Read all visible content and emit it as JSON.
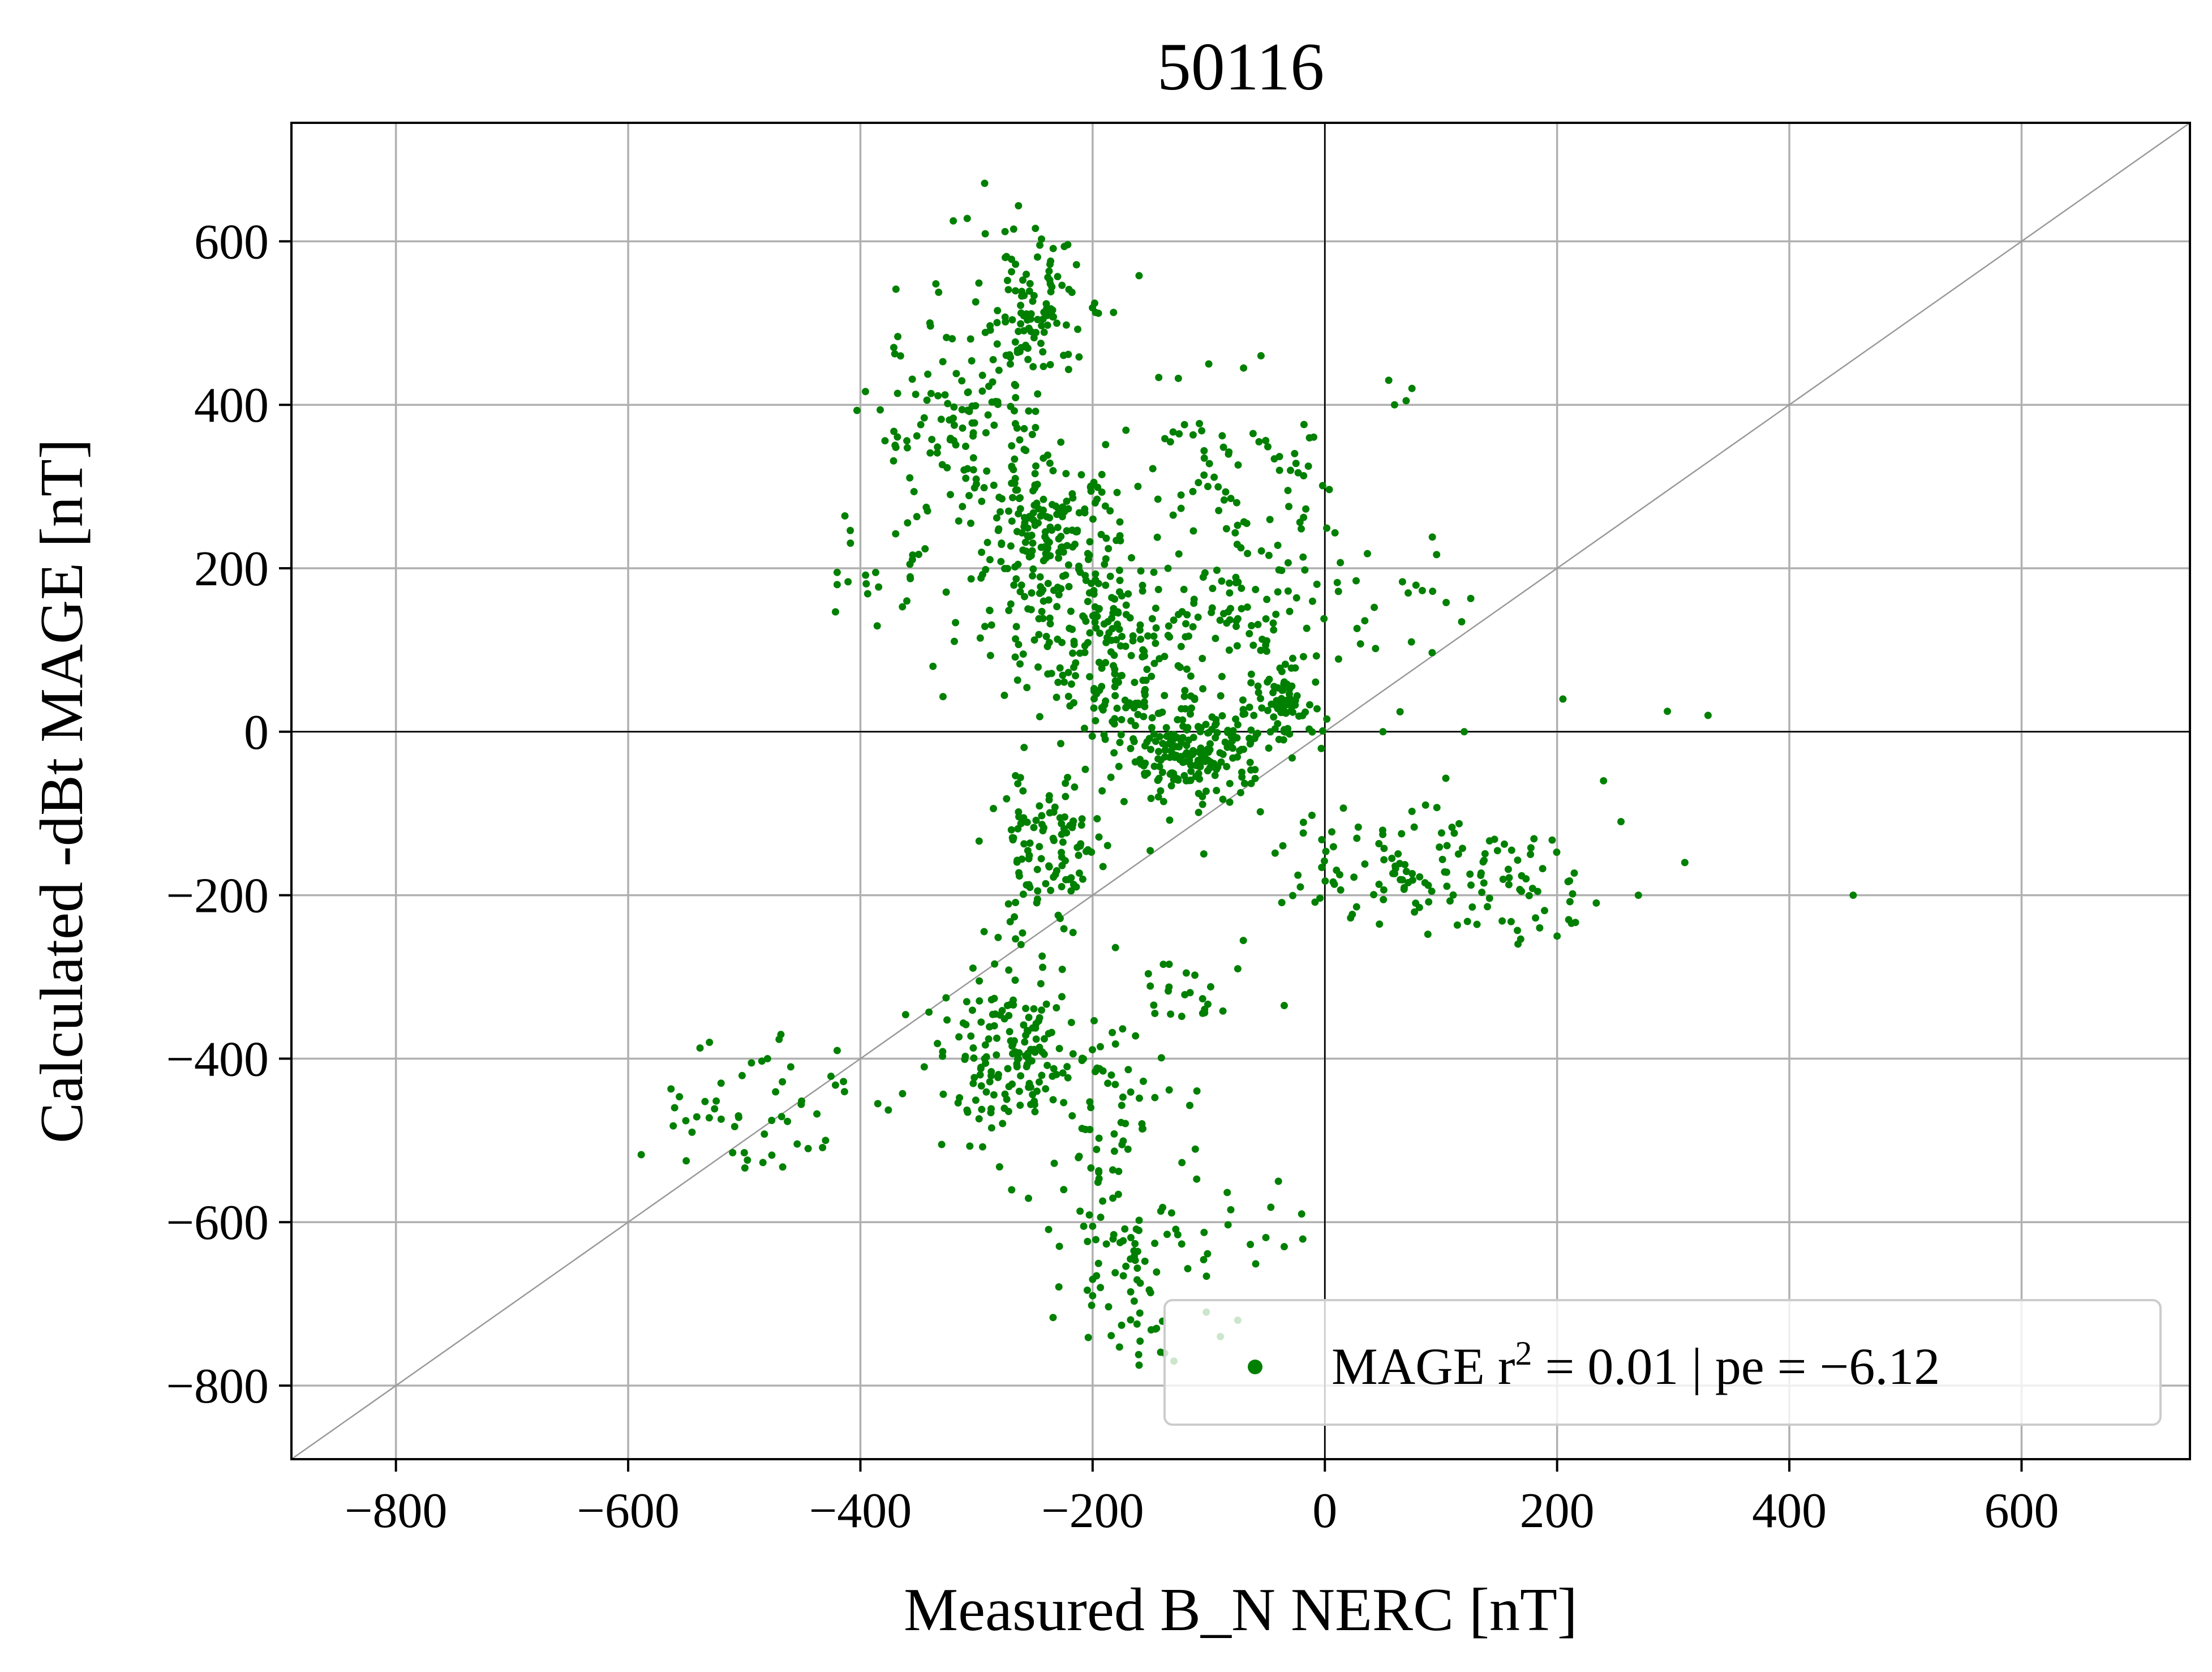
{
  "chart_data": {
    "type": "scatter",
    "title": "50116",
    "xlabel": "Measured B_N NERC [nT]",
    "ylabel": "Calculated -dBt MAGE [nT]",
    "xlim": [
      -890,
      745
    ],
    "ylim": [
      -890,
      745
    ],
    "xticks": [
      -800,
      -600,
      -400,
      -200,
      0,
      200,
      400,
      600
    ],
    "yticks": [
      -800,
      -600,
      -400,
      -200,
      0,
      200,
      400,
      600
    ],
    "xtick_labels": [
      "−800",
      "−600",
      "−400",
      "−200",
      "0",
      "200",
      "400",
      "600"
    ],
    "ytick_labels": [
      "−800",
      "−600",
      "−400",
      "−200",
      "0",
      "200",
      "400",
      "600"
    ],
    "grid": true,
    "reference_line": "y = x",
    "zero_lines": true,
    "legend_position": "lower-right",
    "colors": {
      "points": "#008000",
      "grid": "#b0b0b0",
      "diagonal": "#999999",
      "axes": "#000000"
    },
    "series": [
      {
        "name": "MAGE r² = 0.01 | pe = −6.12",
        "legend_label": {
          "prefix": "MAGE r",
          "sup": "2",
          "suffix": " = 0.01 | pe = −6.12"
        },
        "clusters": [
          {
            "cx": -255,
            "cy": 510,
            "sx": 22,
            "sy": 45,
            "n": 110
          },
          {
            "cx": -310,
            "cy": 370,
            "sx": 40,
            "sy": 60,
            "n": 120
          },
          {
            "cx": -240,
            "cy": 245,
            "sx": 30,
            "sy": 40,
            "n": 160
          },
          {
            "cx": -210,
            "cy": 140,
            "sx": 50,
            "sy": 55,
            "n": 140
          },
          {
            "cx": -170,
            "cy": 60,
            "sx": 35,
            "sy": 50,
            "n": 100
          },
          {
            "cx": -110,
            "cy": -30,
            "sx": 30,
            "sy": 28,
            "n": 200
          },
          {
            "cx": -80,
            "cy": 130,
            "sx": 40,
            "sy": 50,
            "n": 90
          },
          {
            "cx": -240,
            "cy": -150,
            "sx": 25,
            "sy": 55,
            "n": 120
          },
          {
            "cx": -30,
            "cy": 30,
            "sx": 15,
            "sy": 20,
            "n": 60
          },
          {
            "cx": 80,
            "cy": -160,
            "sx": 60,
            "sy": 40,
            "n": 110
          },
          {
            "cx": 160,
            "cy": -200,
            "sx": 40,
            "sy": 30,
            "n": 30
          },
          {
            "cx": -270,
            "cy": -400,
            "sx": 30,
            "sy": 45,
            "n": 150
          },
          {
            "cx": -200,
            "cy": -450,
            "sx": 40,
            "sy": 60,
            "n": 70
          },
          {
            "cx": -170,
            "cy": -640,
            "sx": 25,
            "sy": 60,
            "n": 70
          },
          {
            "cx": -500,
            "cy": -450,
            "sx": 50,
            "sy": 50,
            "n": 40
          },
          {
            "cx": -380,
            "cy": 200,
            "sx": 30,
            "sy": 40,
            "n": 20
          },
          {
            "cx": -120,
            "cy": 320,
            "sx": 35,
            "sy": 50,
            "n": 40
          },
          {
            "cx": -30,
            "cy": 300,
            "sx": 30,
            "sy": 50,
            "n": 30
          },
          {
            "cx": 40,
            "cy": 150,
            "sx": 40,
            "sy": 50,
            "n": 30
          },
          {
            "cx": -100,
            "cy": -330,
            "sx": 30,
            "sy": 40,
            "n": 20
          },
          {
            "cx": -70,
            "cy": -600,
            "sx": 40,
            "sy": 50,
            "n": 15
          }
        ],
        "points": [
          [
            -293,
            671
          ],
          [
            -320,
            625
          ],
          [
            -308,
            628
          ],
          [
            -268,
            615
          ],
          [
            -195,
            512
          ],
          [
            -182,
            513
          ],
          [
            -160,
            558
          ],
          [
            -335,
            548
          ],
          [
            -420,
            180
          ],
          [
            -420,
            195
          ],
          [
            -395,
            181
          ],
          [
            -360,
            160
          ],
          [
            55,
            430
          ],
          [
            70,
            405
          ],
          [
            60,
            400
          ],
          [
            75,
            420
          ],
          [
            205,
            40
          ],
          [
            295,
            25
          ],
          [
            330,
            20
          ],
          [
            455,
            -200
          ],
          [
            310,
            -160
          ],
          [
            240,
            -60
          ],
          [
            255,
            -110
          ],
          [
            270,
            -200
          ],
          [
            200,
            -250
          ],
          [
            185,
            -240
          ],
          [
            210,
            -230
          ],
          [
            120,
            0
          ],
          [
            50,
            0
          ],
          [
            -55,
            460
          ],
          [
            -70,
            445
          ],
          [
            -100,
            450
          ],
          [
            -560,
            -460
          ],
          [
            -550,
            -525
          ],
          [
            -545,
            -490
          ],
          [
            -530,
            -380
          ],
          [
            -520,
            -430
          ],
          [
            -510,
            -515
          ],
          [
            -500,
            -515
          ],
          [
            -505,
            -470
          ],
          [
            -480,
            -400
          ],
          [
            -460,
            -410
          ],
          [
            -445,
            -510
          ],
          [
            -430,
            -500
          ],
          [
            -420,
            -390
          ],
          [
            -385,
            -455
          ],
          [
            -345,
            -410
          ],
          [
            -330,
            -505
          ],
          [
            -75,
            -290
          ],
          [
            -35,
            -335
          ],
          [
            -75,
            -720
          ],
          [
            -90,
            -740
          ],
          [
            -40,
            -550
          ],
          [
            -20,
            -590
          ],
          [
            -35,
            -630
          ],
          [
            -130,
            -770
          ],
          [
            -160,
            -775
          ],
          [
            -145,
            -730
          ],
          [
            -200,
            -690
          ],
          [
            -200,
            -670
          ],
          [
            -200,
            -605
          ]
        ]
      }
    ]
  }
}
